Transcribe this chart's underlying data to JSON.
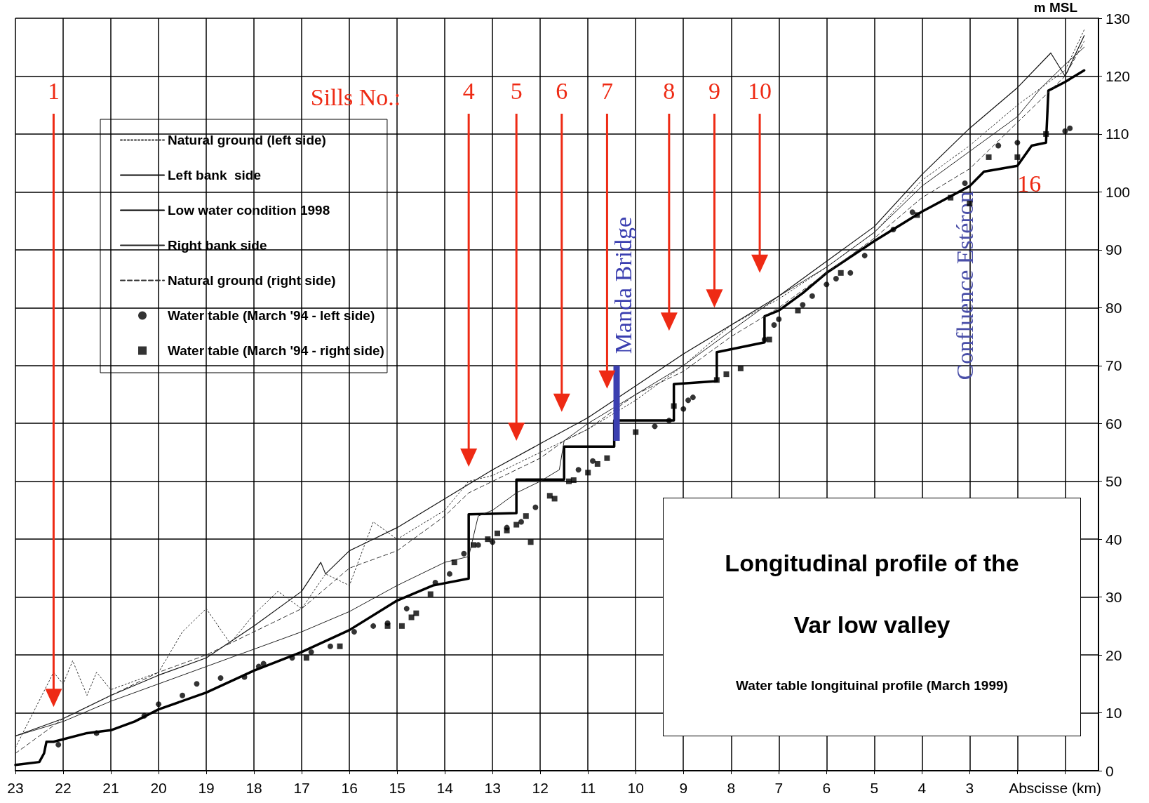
{
  "chart_data": {
    "type": "line",
    "title": "Longitudinal profile of the Var low valley",
    "subtitle": "Water table longituinal profile (March 1999)",
    "xlabel": "Abscisse (km)",
    "ylabel": "m MSL",
    "xlim": [
      23,
      0.3
    ],
    "xticks": [
      23,
      22,
      21,
      20,
      19,
      18,
      17,
      16,
      15,
      14,
      13,
      12,
      11,
      10,
      9,
      8,
      7,
      6,
      5,
      4,
      3,
      {
        "value": 2,
        "label": null
      },
      {
        "value": 1,
        "label": null
      }
    ],
    "ylim": [
      0,
      130
    ],
    "yticks": [
      0,
      10,
      20,
      30,
      40,
      50,
      60,
      70,
      80,
      90,
      100,
      110,
      120,
      130
    ],
    "grid": true,
    "legend": "top left",
    "marker": "none",
    "series": [
      {
        "name": "Natural ground (left side)",
        "color": "#333333",
        "line_style": "dotted",
        "x": [
          23,
          22.2,
          22,
          21.8,
          21.5,
          21.3,
          21,
          20,
          19.5,
          19,
          18.5,
          18,
          17.5,
          17,
          16.5,
          16,
          15.5,
          15,
          14,
          13.5,
          13,
          12,
          11,
          10,
          9,
          8,
          7,
          6,
          5,
          4,
          3,
          2,
          1,
          0.6
        ],
        "values": [
          4,
          17,
          15,
          19,
          13,
          17,
          14,
          17,
          24,
          28,
          22,
          27,
          31,
          28,
          34,
          32,
          43,
          40,
          45,
          50,
          51,
          55,
          59,
          64,
          70,
          77,
          81.5,
          87,
          93,
          102,
          108,
          115,
          121,
          128
        ]
      },
      {
        "name": "Left bank  side",
        "color": "#111111",
        "line_style": "solid",
        "x": [
          23,
          22,
          21,
          20,
          19,
          18,
          17,
          16.6,
          16.5,
          16,
          15,
          14,
          13,
          12,
          11,
          10,
          9,
          8,
          7,
          6,
          5,
          4,
          3,
          2,
          1.3,
          1,
          0.6
        ],
        "values": [
          6,
          9,
          13,
          16.5,
          19.5,
          25,
          31,
          36,
          34,
          38,
          42,
          47,
          52,
          56.5,
          61,
          66.5,
          72,
          77,
          82,
          88,
          94,
          103,
          111,
          118,
          124,
          120,
          127
        ]
      },
      {
        "name": "Low water condition 1998",
        "color": "#000000",
        "line_style": "solid",
        "x": [
          23,
          22.5,
          22.4,
          22.35,
          22.2,
          21.5,
          21,
          20.5,
          20,
          19,
          18,
          17,
          16,
          15,
          14.25,
          13.5,
          13.5,
          12.5,
          12.5,
          11.5,
          11.5,
          10.45,
          10.45,
          9.2,
          9.2,
          8.3,
          8.3,
          7.3,
          7.3,
          7,
          6.5,
          6,
          5,
          4,
          3,
          2.7,
          2,
          1.7,
          1.4,
          1.35,
          1,
          0.6
        ],
        "values": [
          1,
          1.5,
          3,
          5,
          5,
          6.5,
          7,
          8.5,
          10.6,
          13.5,
          17.3,
          20.5,
          24.3,
          29.4,
          32,
          33.2,
          44.3,
          44.5,
          50.3,
          50.3,
          56,
          56,
          60.5,
          60.5,
          66.8,
          67.3,
          72.3,
          74,
          78.5,
          79.5,
          82.5,
          86,
          91.5,
          96.6,
          101,
          103.5,
          104.5,
          108,
          108.5,
          117.5,
          119,
          121
        ]
      },
      {
        "name": "Right bank side",
        "color": "#222222",
        "line_style": "solid",
        "x": [
          23,
          22,
          21,
          20,
          19,
          18,
          17,
          16,
          15,
          14,
          13.5,
          13.3,
          13,
          12.5,
          12,
          11.6,
          11.5,
          11,
          10,
          9,
          8,
          7,
          6,
          5,
          4,
          3,
          2,
          1.5,
          1,
          0.6
        ],
        "values": [
          6,
          8.5,
          12,
          15,
          18,
          21,
          24,
          27.5,
          32,
          36,
          37,
          44,
          45,
          48,
          50,
          52,
          57,
          60,
          65,
          70,
          76,
          82,
          87,
          93,
          101,
          107,
          113,
          118,
          122,
          125
        ]
      },
      {
        "name": "Natural ground (right side)",
        "color": "#333333",
        "line_style": "dashed",
        "x": [
          23,
          22,
          21,
          20,
          19,
          18,
          17,
          16,
          15,
          14,
          13.5,
          13,
          12,
          11.5,
          11,
          10,
          9,
          8,
          7,
          6,
          5,
          4,
          3,
          2,
          1,
          0.6
        ],
        "values": [
          3,
          9,
          13,
          17,
          20,
          24,
          28,
          35,
          38,
          44,
          48,
          50,
          54,
          57,
          59,
          65,
          69,
          75,
          80,
          86,
          92,
          99,
          104,
          112,
          120,
          126
        ]
      },
      {
        "name": "Water table (March '94 - left side)",
        "type": "scatter",
        "marker": "circle",
        "color": "#000000",
        "x": [
          22.1,
          21.3,
          20.3,
          20,
          19.5,
          19.2,
          18.7,
          18.2,
          17.9,
          17.8,
          17.2,
          16.8,
          16.4,
          15.9,
          15.5,
          15.2,
          14.8,
          14.2,
          13.9,
          13.6,
          13.3,
          13,
          12.7,
          12.4,
          12.1,
          11.2,
          10.9,
          9.6,
          9.3,
          9,
          8.9,
          8.8,
          7.3,
          7.1,
          7,
          6.5,
          6.3,
          6,
          5.8,
          5.5,
          5.2,
          4.6,
          4.2,
          3.1,
          2.4,
          2,
          1,
          0.9
        ],
        "values": [
          4.5,
          6.5,
          9.5,
          11.5,
          13,
          15,
          16,
          16.2,
          18,
          18.5,
          19.5,
          20.5,
          21.5,
          24,
          25,
          25.5,
          28,
          32.5,
          34,
          37.5,
          39,
          39.5,
          42,
          43,
          45.5,
          52,
          53.5,
          59.5,
          60.5,
          62.5,
          64,
          64.5,
          74.5,
          77,
          78,
          80.5,
          82,
          84,
          85,
          86,
          89,
          93.5,
          96.5,
          101.5,
          108,
          108.5,
          110.5,
          111
        ]
      },
      {
        "name": "Water table (March '94 - right side)",
        "type": "scatter",
        "marker": "square",
        "color": "#000000",
        "x": [
          16.9,
          16.2,
          15.2,
          14.9,
          14.7,
          14.6,
          14.3,
          13.8,
          13.4,
          13.1,
          12.9,
          12.7,
          12.5,
          12.3,
          12.2,
          11.8,
          11.7,
          11.4,
          11.3,
          11,
          10.8,
          10.6,
          10,
          9.2,
          8.3,
          8.1,
          7.8,
          7.2,
          6.6,
          5.7,
          4.1,
          3.4,
          3,
          2.6,
          2,
          1.4
        ],
        "values": [
          19.5,
          21.5,
          25,
          25,
          26.5,
          27.2,
          30.5,
          36,
          39,
          40,
          41,
          41.5,
          42.5,
          44,
          39.5,
          47.5,
          47,
          50,
          50.2,
          51.5,
          53,
          54,
          58.5,
          63,
          67.5,
          68.5,
          69.5,
          74.5,
          79.5,
          86,
          96,
          99,
          98,
          106,
          106,
          110
        ]
      },
      {
        "name": "Manda Bridge",
        "color": "#3b3fb0",
        "line_style": "solid",
        "x": [
          10.4,
          10.4
        ],
        "values": [
          57,
          70
        ]
      }
    ],
    "annotations": [
      "1",
      "Sills No.:",
      "4",
      "5",
      "6",
      "7",
      "8",
      "9",
      "10",
      "Confluence Estéron",
      "16"
    ]
  }
}
